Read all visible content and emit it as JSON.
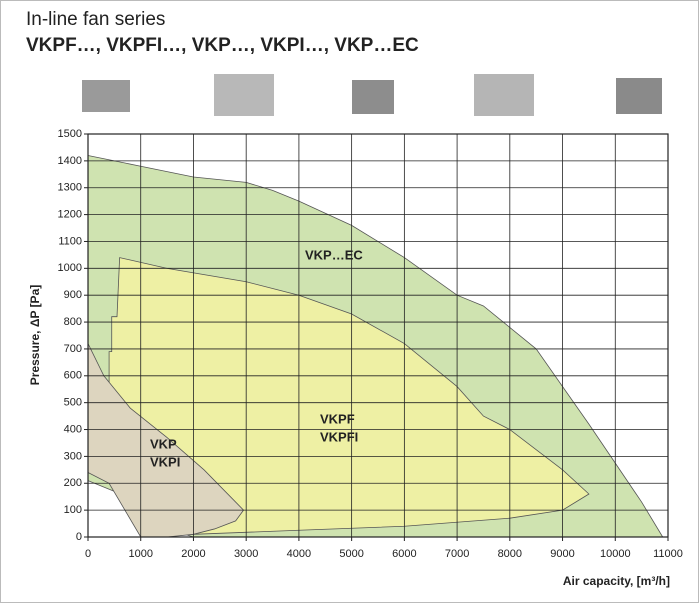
{
  "chart_data": {
    "type": "region",
    "title": "In-line fan series",
    "subtitle": "VKPF…, VKPFI…, VKP…, VKPI…, VKP…EC",
    "x_label": "Air capacity, [m³/h]",
    "y_label": "Pressure, ΔP [Pa]",
    "xlim": [
      0,
      11000
    ],
    "ylim": [
      0,
      1500
    ],
    "xticks": [
      0,
      1000,
      2000,
      3000,
      4000,
      5000,
      6000,
      7000,
      8000,
      9000,
      10000,
      11000
    ],
    "yticks": [
      0,
      100,
      200,
      300,
      400,
      500,
      600,
      700,
      800,
      900,
      1000,
      1100,
      1200,
      1300,
      1400,
      1500
    ],
    "grid": true,
    "series": [
      {
        "labels": [
          "VKP…EC"
        ],
        "color": "#cfe3b0",
        "x": [
          0,
          1000,
          2000,
          3000,
          3500,
          4000,
          5000,
          6000,
          7000,
          7500,
          8500,
          9500,
          10500,
          10900,
          2000,
          1500,
          1000,
          500,
          0
        ],
        "values": [
          1420,
          1380,
          1340,
          1320,
          1290,
          1250,
          1160,
          1040,
          900,
          860,
          700,
          420,
          130,
          0,
          0,
          30,
          120,
          170,
          210
        ]
      },
      {
        "labels": [
          "VKPF",
          "VKPFI"
        ],
        "color": "#eef0a4",
        "x": [
          600,
          1500,
          3000,
          4000,
          5000,
          6000,
          7000,
          7500,
          8000,
          9000,
          9500,
          9000,
          8000,
          6000,
          4000,
          2000,
          1500,
          1000,
          500,
          0,
          0,
          400,
          400,
          450,
          450,
          550
        ],
        "values": [
          1040,
          1000,
          950,
          900,
          830,
          720,
          560,
          450,
          400,
          250,
          160,
          100,
          70,
          40,
          25,
          10,
          5,
          100,
          200,
          260,
          310,
          300,
          690,
          690,
          820,
          820
        ]
      },
      {
        "labels": [
          "VKP",
          "VKPI"
        ],
        "color": "#ddd5bf",
        "x": [
          0,
          300,
          800,
          1500,
          2200,
          2700,
          2950,
          2800,
          2400,
          2000,
          1500,
          1000,
          700,
          400,
          0
        ],
        "values": [
          720,
          600,
          480,
          370,
          250,
          150,
          100,
          60,
          30,
          10,
          0,
          0,
          100,
          200,
          240
        ]
      }
    ]
  }
}
